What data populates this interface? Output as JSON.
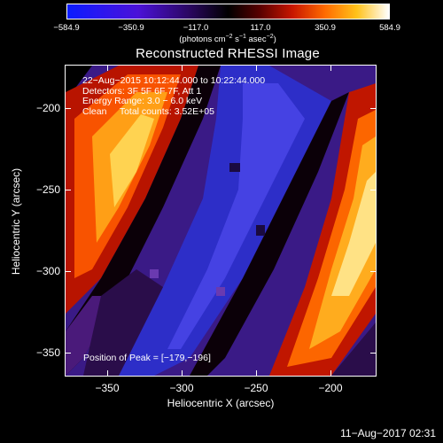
{
  "colorbar": {
    "ticks": [
      "−584.9",
      "−350.9",
      "−117.0",
      "117.0",
      "350.9",
      "584.9"
    ],
    "unit_prefix": "(photons cm",
    "unit_exp1": "−2",
    "unit_mid": " s",
    "unit_exp2": "−1",
    "unit_mid2": " asec",
    "unit_exp3": "−2",
    "unit_suffix": ")",
    "colors": [
      "#0a1cff",
      "#4b12d8",
      "#000000",
      "#c81600",
      "#ff6a00",
      "#ffffff"
    ]
  },
  "title": "Reconstructed RHESSI Image",
  "info": {
    "line1": "22−Aug−2015 10:12:44.000 to 10:22:44.000",
    "line2": "Detectors: 3F 5F 6F 7F, Att 1",
    "line3": "Energy Range: 3.0 − 6.0 keV",
    "line4": "Clean     Total counts: 3.52E+05"
  },
  "peak": "Position of Peak = [−179,−196]",
  "y_axis": {
    "label": "Heliocentric Y (arcsec)",
    "ticks": [
      "−200",
      "−250",
      "−300",
      "−350"
    ]
  },
  "x_axis": {
    "label": "Heliocentric X (arcsec)",
    "ticks": [
      "−350",
      "−300",
      "−250",
      "−200"
    ]
  },
  "timestamp": "11−Aug−2017 02:31"
}
